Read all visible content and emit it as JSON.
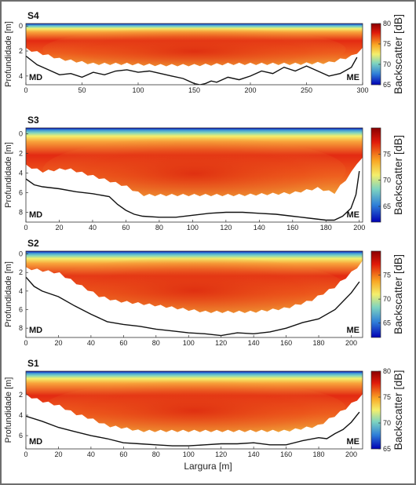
{
  "figure": {
    "xlabel": "Largura [m]",
    "colors": {
      "low": "#0000b4",
      "mid": "#7ed4c0",
      "mid2": "#f4ef6c",
      "high": "#e32a12",
      "max": "#8a0000",
      "bed": "#111111"
    }
  },
  "chart_data": [
    {
      "type": "heatmap",
      "title": "S4",
      "ylabel": "Profundidade [m]",
      "colorbar_label": "Backscatter [dB]",
      "colorbar_ticks": [
        "80",
        "75",
        "70",
        "65"
      ],
      "clim": [
        65,
        80
      ],
      "xlim": [
        0,
        300
      ],
      "ylim": [
        4.7,
        -0.2
      ],
      "xticks": [
        "0",
        "50",
        "100",
        "150",
        "200",
        "250",
        "300"
      ],
      "yticks": [
        "0",
        "2",
        "4"
      ],
      "bank_labels": [
        "MD",
        "ME"
      ],
      "bed_profile": {
        "x": [
          0,
          10,
          20,
          30,
          40,
          50,
          60,
          70,
          80,
          90,
          100,
          110,
          120,
          130,
          140,
          150,
          155,
          160,
          165,
          170,
          180,
          190,
          200,
          210,
          220,
          230,
          240,
          250,
          260,
          270,
          280,
          290,
          295
        ],
        "depth": [
          2.4,
          3.1,
          3.5,
          3.9,
          3.8,
          4.1,
          3.7,
          3.9,
          3.6,
          3.5,
          3.7,
          3.6,
          3.8,
          4.0,
          4.2,
          4.6,
          4.7,
          4.6,
          4.4,
          4.5,
          4.1,
          4.3,
          4.0,
          3.6,
          3.8,
          3.3,
          3.6,
          3.2,
          3.6,
          4.0,
          3.8,
          3.3,
          2.5
        ]
      },
      "data_extent": {
        "x": [
          0,
          15,
          30,
          45,
          60,
          90,
          120,
          150,
          180,
          210,
          240,
          270,
          290,
          300
        ],
        "max_depth": [
          1.8,
          2.2,
          2.6,
          2.8,
          3.0,
          3.0,
          3.1,
          3.1,
          3.0,
          3.0,
          3.0,
          2.9,
          2.4,
          1.8
        ]
      }
    },
    {
      "type": "heatmap",
      "title": "S3",
      "ylabel": "Profundidade [m]",
      "colorbar_label": "Backscatter [dB]",
      "colorbar_ticks": [
        "75",
        "70",
        "65"
      ],
      "clim": [
        62,
        80
      ],
      "xlim": [
        0,
        202
      ],
      "ylim": [
        9,
        -0.6
      ],
      "xticks": [
        "0",
        "20",
        "40",
        "60",
        "80",
        "100",
        "120",
        "140",
        "160",
        "180",
        "200"
      ],
      "yticks": [
        "0",
        "2",
        "4",
        "6",
        "8"
      ],
      "bank_labels": [
        "MD",
        "ME"
      ],
      "bed_profile": {
        "x": [
          0,
          5,
          10,
          20,
          30,
          40,
          50,
          55,
          60,
          65,
          70,
          80,
          90,
          100,
          110,
          120,
          130,
          140,
          150,
          160,
          170,
          180,
          185,
          190,
          195,
          198,
          200
        ],
        "depth": [
          4.6,
          5.2,
          5.4,
          5.6,
          5.9,
          6.1,
          6.4,
          7.2,
          7.8,
          8.2,
          8.4,
          8.5,
          8.5,
          8.3,
          8.1,
          8.0,
          8.0,
          8.1,
          8.2,
          8.4,
          8.6,
          8.8,
          8.8,
          8.4,
          7.6,
          6.2,
          3.8
        ]
      },
      "data_extent": {
        "x": [
          0,
          10,
          25,
          45,
          60,
          70,
          100,
          130,
          160,
          175,
          185,
          195,
          200
        ],
        "max_depth": [
          3.2,
          3.8,
          3.5,
          4.5,
          5.3,
          6.2,
          6.2,
          6.2,
          6.0,
          5.5,
          6.0,
          4.0,
          2.5
        ]
      }
    },
    {
      "type": "heatmap",
      "title": "S2",
      "ylabel": "Profundidade [m]",
      "colorbar_label": "Backscatter [dB]",
      "colorbar_ticks": [
        "75",
        "70",
        "65"
      ],
      "clim": [
        62,
        80
      ],
      "xlim": [
        0,
        207
      ],
      "ylim": [
        9,
        -0.3
      ],
      "xticks": [
        "0",
        "20",
        "40",
        "60",
        "80",
        "100",
        "120",
        "140",
        "160",
        "180",
        "200"
      ],
      "yticks": [
        "0",
        "2",
        "4",
        "6",
        "8"
      ],
      "bank_labels": [
        "MD",
        "ME"
      ],
      "bed_profile": {
        "x": [
          0,
          5,
          10,
          20,
          30,
          40,
          50,
          60,
          70,
          80,
          90,
          100,
          110,
          120,
          130,
          140,
          150,
          160,
          170,
          180,
          190,
          200,
          205
        ],
        "depth": [
          2.5,
          3.5,
          4.0,
          4.6,
          5.6,
          6.5,
          7.3,
          7.6,
          7.8,
          8.1,
          8.3,
          8.5,
          8.6,
          8.8,
          8.5,
          8.6,
          8.4,
          8.0,
          7.4,
          7.0,
          6.0,
          4.2,
          3.0
        ]
      },
      "data_extent": {
        "x": [
          0,
          20,
          30,
          45,
          55,
          80,
          110,
          140,
          160,
          175,
          190,
          200,
          207
        ],
        "max_depth": [
          1.5,
          2.0,
          3.0,
          4.5,
          5.0,
          5.5,
          6.2,
          6.2,
          5.8,
          5.0,
          3.5,
          2.0,
          0.8
        ]
      }
    },
    {
      "type": "heatmap",
      "title": "S1",
      "ylabel": "Profundidade [m]",
      "colorbar_label": "Backscatter [dB]",
      "colorbar_ticks": [
        "80",
        "75",
        "70",
        "65"
      ],
      "clim": [
        65,
        80
      ],
      "xlim": [
        0,
        207
      ],
      "ylim": [
        7.3,
        -0.3
      ],
      "xticks": [
        "0",
        "20",
        "40",
        "60",
        "80",
        "100",
        "120",
        "140",
        "160",
        "180",
        "200"
      ],
      "yticks": [
        "2",
        "4",
        "6"
      ],
      "bank_labels": [
        "MD",
        "ME"
      ],
      "bed_profile": {
        "x": [
          0,
          10,
          20,
          30,
          40,
          50,
          60,
          70,
          80,
          90,
          100,
          110,
          120,
          130,
          140,
          150,
          160,
          170,
          180,
          185,
          190,
          195,
          200,
          205
        ],
        "depth": [
          4.1,
          4.6,
          5.2,
          5.6,
          6.0,
          6.3,
          6.7,
          6.8,
          6.9,
          7.0,
          7.0,
          6.9,
          6.8,
          6.8,
          6.7,
          6.9,
          6.9,
          6.5,
          6.2,
          6.3,
          5.8,
          5.4,
          4.7,
          3.7
        ]
      },
      "data_extent": {
        "x": [
          0,
          10,
          20,
          30,
          40,
          50,
          60,
          70,
          100,
          130,
          160,
          180,
          195,
          207
        ],
        "max_depth": [
          2.0,
          2.6,
          3.0,
          3.8,
          4.3,
          5.0,
          5.2,
          5.5,
          5.5,
          5.5,
          5.5,
          5.0,
          3.5,
          2.0
        ]
      }
    }
  ]
}
